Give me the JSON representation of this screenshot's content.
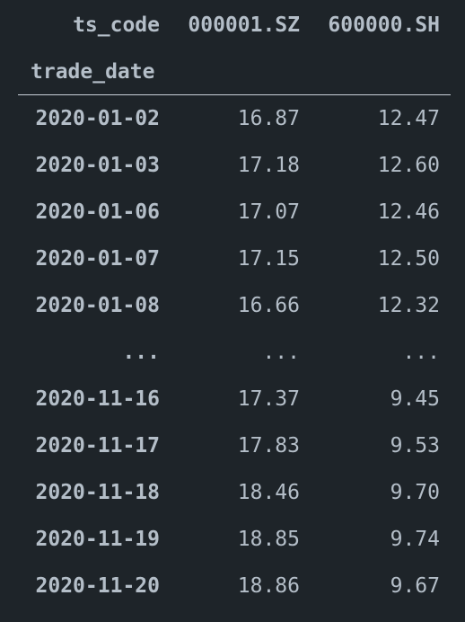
{
  "table": {
    "columns_label": "ts_code",
    "columns": [
      "000001.SZ",
      "600000.SH"
    ],
    "index_label": "trade_date",
    "rows": [
      {
        "date": "2020-01-02",
        "values": [
          "16.87",
          "12.47"
        ]
      },
      {
        "date": "2020-01-03",
        "values": [
          "17.18",
          "12.60"
        ]
      },
      {
        "date": "2020-01-06",
        "values": [
          "17.07",
          "12.46"
        ]
      },
      {
        "date": "2020-01-07",
        "values": [
          "17.15",
          "12.50"
        ]
      },
      {
        "date": "2020-01-08",
        "values": [
          "16.66",
          "12.32"
        ]
      },
      {
        "date": "...",
        "values": [
          "...",
          "..."
        ]
      },
      {
        "date": "2020-11-16",
        "values": [
          "17.37",
          "9.45"
        ]
      },
      {
        "date": "2020-11-17",
        "values": [
          "17.83",
          "9.53"
        ]
      },
      {
        "date": "2020-11-18",
        "values": [
          "18.46",
          "9.70"
        ]
      },
      {
        "date": "2020-11-19",
        "values": [
          "18.85",
          "9.74"
        ]
      },
      {
        "date": "2020-11-20",
        "values": [
          "18.86",
          "9.67"
        ]
      }
    ]
  },
  "colors": {
    "background": "#1e2429",
    "text": "#b4bec8",
    "rule": "#c8d0d8"
  }
}
